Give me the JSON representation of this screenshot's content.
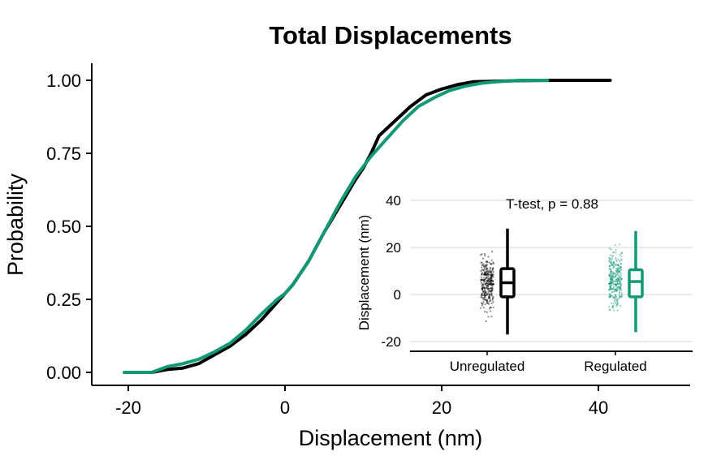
{
  "chart_data": [
    {
      "type": "line",
      "subtype": "ecdf",
      "title": "Total Displacements",
      "xlabel": "Displacement (nm)",
      "ylabel": "Probability",
      "xlim": [
        -25,
        52
      ],
      "ylim": [
        -0.05,
        1.05
      ],
      "xticks": [
        -20,
        0,
        20,
        40
      ],
      "xtick_labels": [
        "-20",
        "0",
        "20",
        "40"
      ],
      "yticks": [
        0,
        0.25,
        0.5,
        0.75,
        1
      ],
      "ytick_labels": [
        "0.00",
        "0.25",
        "0.50",
        "0.75",
        "1.00"
      ],
      "grid": false,
      "series": [
        {
          "color": "#000000",
          "x": [
            -20.5,
            -17,
            -15,
            -13,
            -11,
            -9,
            -7,
            -5,
            -3,
            -1,
            0,
            1,
            3,
            5,
            7,
            9,
            10,
            11,
            12,
            14,
            16,
            18,
            20,
            22,
            24,
            27,
            30,
            35,
            41.5
          ],
          "y": [
            0.0,
            0.0,
            0.01,
            0.015,
            0.03,
            0.06,
            0.09,
            0.13,
            0.18,
            0.24,
            0.27,
            0.3,
            0.38,
            0.48,
            0.57,
            0.66,
            0.7,
            0.75,
            0.81,
            0.86,
            0.91,
            0.95,
            0.97,
            0.985,
            0.995,
            0.997,
            0.999,
            1.0,
            1.0
          ]
        },
        {
          "color": "#119977",
          "x": [
            -20.5,
            -17,
            -15,
            -13,
            -11,
            -9,
            -7,
            -5,
            -3,
            -1,
            0,
            1,
            3,
            5,
            7,
            9,
            11,
            13,
            15,
            17,
            19,
            21,
            23,
            25,
            27,
            30,
            33.5
          ],
          "y": [
            0.0,
            0.0,
            0.02,
            0.03,
            0.045,
            0.07,
            0.1,
            0.145,
            0.2,
            0.25,
            0.27,
            0.3,
            0.38,
            0.48,
            0.58,
            0.67,
            0.74,
            0.8,
            0.86,
            0.91,
            0.94,
            0.965,
            0.98,
            0.99,
            0.995,
            1.0,
            1.0
          ]
        }
      ]
    },
    {
      "type": "box",
      "subtype": "box_with_jitter",
      "xlabel": "",
      "ylabel": "Displacement (nm)",
      "ylim": [
        -23,
        46
      ],
      "yticks": [
        -20,
        0,
        20,
        40
      ],
      "ytick_labels": [
        "-20",
        "0",
        "20",
        "40"
      ],
      "grid": true,
      "annotation": "T-test, p = 0.88",
      "categories": [
        "Unregulated",
        "Regulated"
      ],
      "colors": [
        "#000000",
        "#119977"
      ],
      "boxes": [
        {
          "min": -17,
          "q1": -1,
          "median": 5,
          "q3": 11,
          "max": 28
        },
        {
          "min": -16,
          "q1": -1,
          "median": 5.5,
          "q3": 10.5,
          "max": 27
        }
      ],
      "jitter_points": {
        "count_per_group": 300,
        "range": [
          [
            -17,
            41
          ],
          [
            -21,
            33
          ]
        ]
      }
    }
  ]
}
